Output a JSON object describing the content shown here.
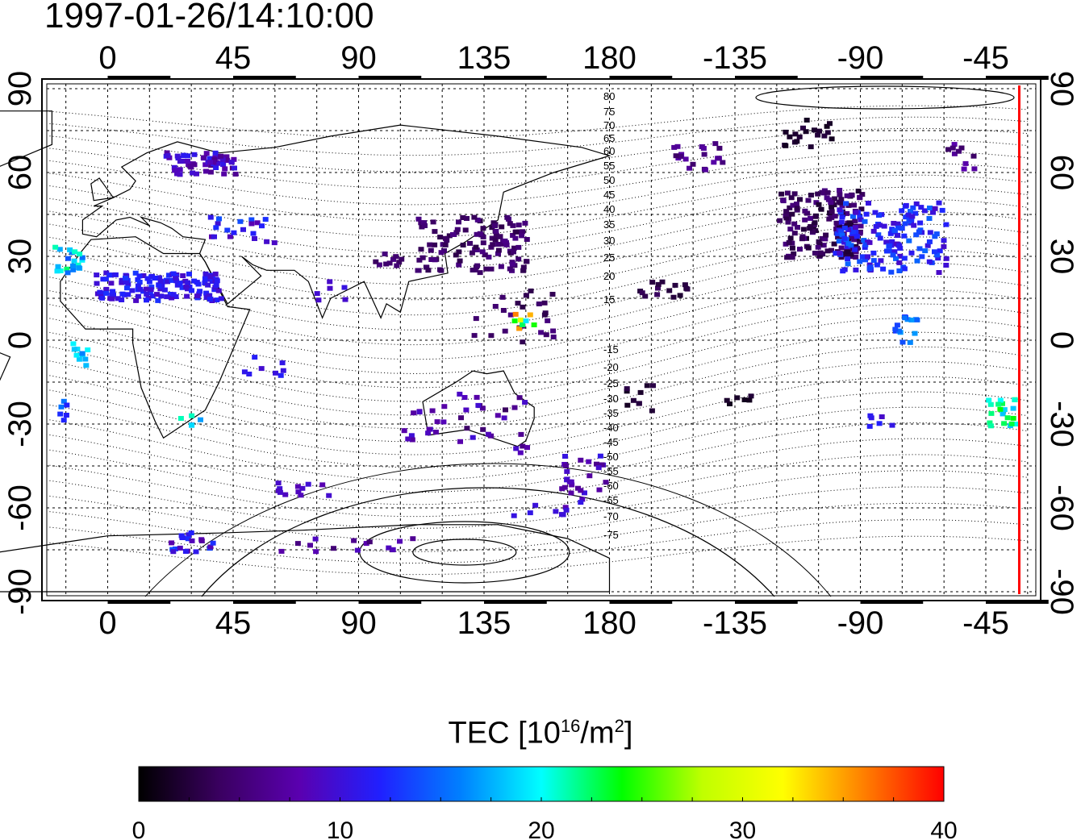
{
  "title": "1997-01-26/14:10:00",
  "map": {
    "lon_ticks_labels": [
      "0",
      "45",
      "90",
      "135",
      "180",
      "-135",
      "-90",
      "-45"
    ],
    "lon_ticks_values": [
      0,
      45,
      90,
      135,
      180,
      225,
      270,
      315
    ],
    "lat_ticks_labels": [
      "90",
      "60",
      "30",
      "0",
      "-30",
      "-60",
      "-90"
    ],
    "lat_ticks_values": [
      90,
      60,
      30,
      0,
      -30,
      -60,
      -90
    ],
    "grid": true,
    "contour_labels": [
      "80",
      "75",
      "70",
      "65",
      "60",
      "55",
      "50",
      "45",
      "40",
      "35",
      "30",
      "25",
      "20",
      "15",
      "-15",
      "-20",
      "-25",
      "-30",
      "-35",
      "-40",
      "-45",
      "-50",
      "-55",
      "-60",
      "-65",
      "-70",
      "-75"
    ],
    "terminator_color": "#ff0000"
  },
  "colorbar": {
    "label_prefix": "TEC  [10",
    "label_exp": "16",
    "label_mid": "/m",
    "label_exp2": "2",
    "label_suffix": "]",
    "min": 0,
    "max": 40,
    "tick_labels": [
      "0",
      "10",
      "20",
      "30",
      "40"
    ],
    "tick_values": [
      0,
      10,
      20,
      30,
      40
    ],
    "colormap": [
      "#000000",
      "#3a0060",
      "#5a00b0",
      "#2020ff",
      "#0080ff",
      "#00ffff",
      "#00ff00",
      "#c0ff00",
      "#ffff00",
      "#ff8000",
      "#ff0000"
    ]
  }
}
